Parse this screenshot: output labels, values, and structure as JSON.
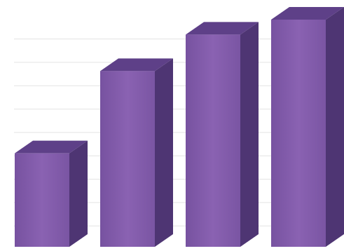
{
  "chart_data": {
    "type": "bar",
    "style": "3d-column",
    "categories": [
      "",
      "",
      "",
      ""
    ],
    "values": [
      1.0,
      1.88,
      2.27,
      2.43
    ],
    "ylim": [
      0,
      2.43
    ],
    "title": "",
    "xlabel": "",
    "ylabel": "",
    "grid": true,
    "legend": "none",
    "colors": {
      "front": "#8158A8",
      "top": "#5E4088",
      "side": "#4E3573",
      "gridline": "#E3E3E3"
    }
  }
}
